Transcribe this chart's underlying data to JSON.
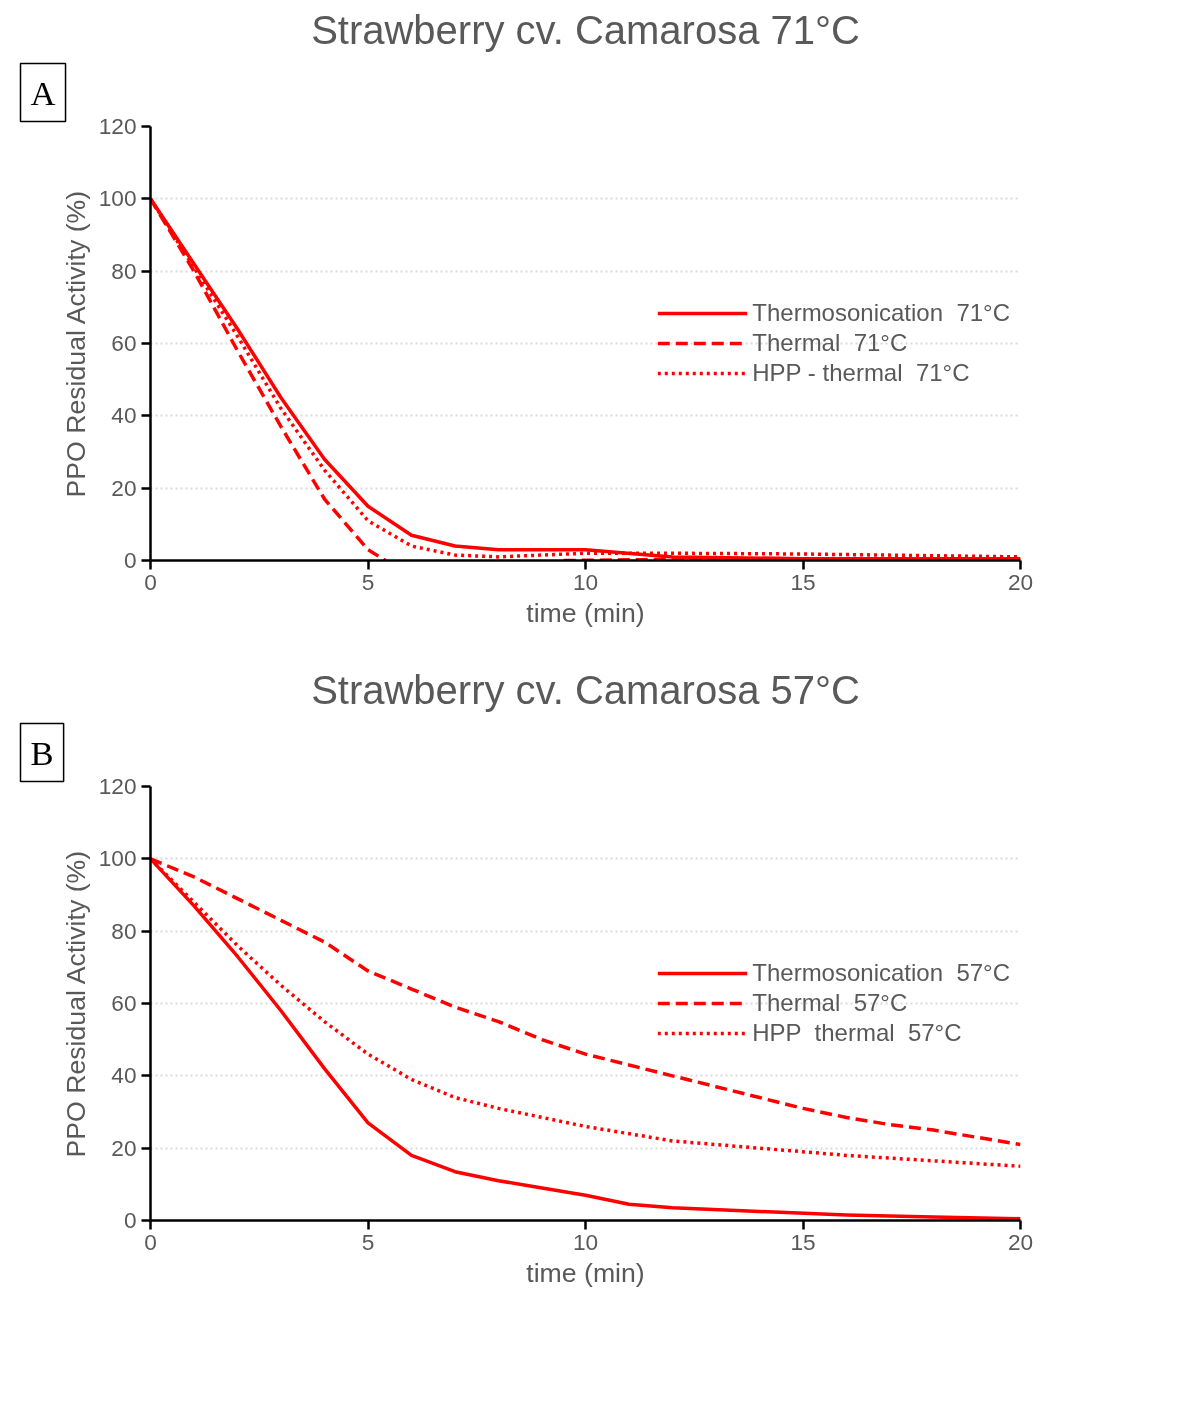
{
  "chart_data": [
    {
      "type": "line",
      "title": "Strawberry cv. Camarosa 71°C",
      "xlabel": "time (min)",
      "ylabel": "PPO Residual Activity (%)",
      "annotations": [
        "A"
      ],
      "xlim": [
        0,
        20
      ],
      "ylim": [
        0,
        120
      ],
      "xticks": [
        0,
        5,
        10,
        15,
        20
      ],
      "yticks": [
        0,
        20,
        40,
        60,
        80,
        100,
        120
      ],
      "grid": "y",
      "legend": "right",
      "marker": "none",
      "series": [
        {
          "name": "Thermosonication  71°C",
          "color": "#ff0000",
          "line_style": "solid",
          "x": [
            0,
            1,
            2,
            3,
            4,
            5,
            6,
            7,
            8,
            10,
            12,
            15,
            20
          ],
          "values": [
            100,
            82,
            64,
            45,
            28,
            15,
            7,
            4,
            3,
            3,
            1,
            0.5,
            0.5
          ]
        },
        {
          "name": "Thermal  71°C",
          "color": "#ff0000",
          "line_style": "dashed",
          "x": [
            0,
            1,
            2,
            3,
            4,
            5,
            5.4,
            7,
            9.5,
            12,
            15,
            20
          ],
          "values": [
            100,
            80,
            58,
            37,
            17,
            3,
            0,
            null,
            0,
            0.3,
            0.3,
            0.3
          ]
        },
        {
          "name": "HPP - thermal  71°C",
          "color": "#ff0000",
          "line_style": "dotted",
          "x": [
            0,
            1,
            2,
            3,
            4,
            5,
            6,
            7,
            8,
            9,
            10,
            12,
            15,
            20
          ],
          "values": [
            100,
            81,
            62,
            42,
            25,
            11,
            4,
            1.5,
            1,
            1.5,
            2,
            2,
            1.8,
            1
          ]
        }
      ]
    },
    {
      "type": "line",
      "title": "Strawberry cv. Camarosa 57°C",
      "xlabel": "time (min)",
      "ylabel": "PPO Residual Activity (%)",
      "annotations": [
        "B"
      ],
      "xlim": [
        0,
        20
      ],
      "ylim": [
        0,
        120
      ],
      "xticks": [
        0,
        5,
        10,
        15,
        20
      ],
      "yticks": [
        0,
        20,
        40,
        60,
        80,
        100,
        120
      ],
      "grid": "y",
      "legend": "right",
      "marker": "none",
      "series": [
        {
          "name": "Thermosonication  57°C",
          "color": "#ff0000",
          "line_style": "solid",
          "x": [
            0,
            1,
            2,
            3,
            4,
            5,
            6,
            7,
            8,
            9,
            10,
            11,
            12,
            14,
            16,
            18,
            20
          ],
          "values": [
            100,
            87,
            73,
            58,
            42,
            27,
            18,
            13.5,
            11,
            9,
            7,
            4.5,
            3.5,
            2.5,
            1.5,
            1,
            0.5
          ]
        },
        {
          "name": "Thermal  57°C",
          "color": "#ff0000",
          "line_style": "dashed",
          "x": [
            0,
            1,
            2,
            3,
            4,
            5,
            6,
            7,
            8,
            9,
            10,
            11,
            12,
            13,
            14,
            15,
            16,
            17,
            18,
            19,
            20
          ],
          "values": [
            100,
            95,
            89,
            83,
            77,
            69,
            64,
            59,
            55,
            50,
            46,
            43,
            40,
            37,
            34,
            31,
            28.5,
            26.5,
            25,
            23,
            21
          ]
        },
        {
          "name": "HPP  thermal  57°C",
          "color": "#ff0000",
          "line_style": "dotted",
          "x": [
            0,
            1,
            2,
            3,
            4,
            5,
            6,
            7,
            8,
            9,
            10,
            12,
            14,
            16,
            18,
            20
          ],
          "values": [
            100,
            88,
            76,
            65,
            55,
            46,
            39,
            34,
            31,
            28.5,
            26,
            22,
            20,
            18,
            16.5,
            15
          ]
        }
      ]
    }
  ]
}
